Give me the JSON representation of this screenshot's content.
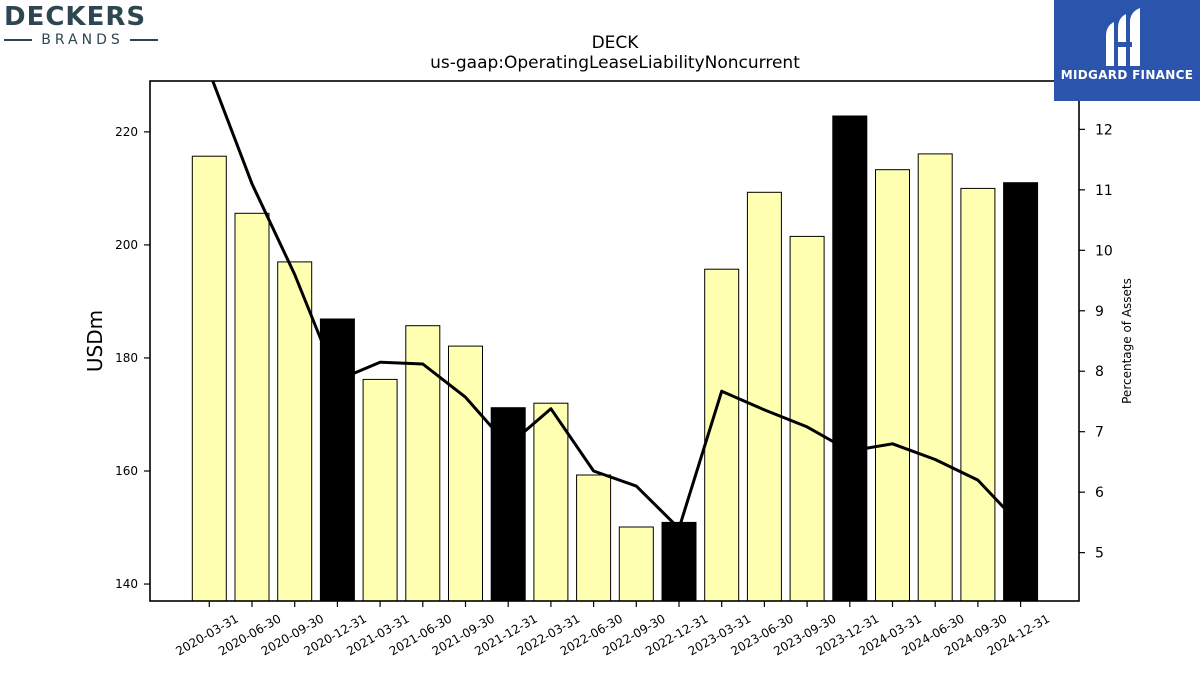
{
  "brand_left": {
    "name": "DECKERS",
    "sub": "BRANDS",
    "color": "#2e4650"
  },
  "brand_right": {
    "name": "MIDGARD FINANCE",
    "bg": "#2b55ad"
  },
  "chart_data": {
    "type": "bar",
    "title": "DECK",
    "subtitle": "us-gaap:OperatingLeaseLiabilityNoncurrent",
    "ylabel": "USDm",
    "y2label": "Percentage of Assets",
    "ylim": [
      137,
      229
    ],
    "y2lim": [
      4.2,
      12.8
    ],
    "yticks": [
      140,
      160,
      180,
      200,
      220
    ],
    "y2ticks": [
      5,
      6,
      7,
      8,
      9,
      10,
      11,
      12
    ],
    "categories": [
      "2020-03-31",
      "2020-06-30",
      "2020-09-30",
      "2020-12-31",
      "2021-03-31",
      "2021-06-30",
      "2021-09-30",
      "2021-12-31",
      "2022-03-31",
      "2022-06-30",
      "2022-09-30",
      "2022-12-31",
      "2023-03-31",
      "2023-06-30",
      "2023-09-30",
      "2023-12-31",
      "2024-03-31",
      "2024-06-30",
      "2024-09-30",
      "2024-12-31"
    ],
    "series": [
      {
        "kind": "bar",
        "axis": "left",
        "values": [
          215.7,
          205.6,
          197.0,
          186.9,
          176.2,
          185.7,
          182.1,
          171.2,
          172.0,
          159.3,
          150.1,
          150.9,
          195.7,
          209.3,
          201.5,
          222.8,
          213.3,
          216.1,
          210.0,
          211.0
        ],
        "highlight": [
          3,
          7,
          11,
          15,
          19
        ],
        "color": "#ffffb2",
        "highlight_color": "#000000"
      },
      {
        "kind": "line",
        "axis": "right",
        "values": [
          12.95,
          11.1,
          9.6,
          7.85,
          8.15,
          8.12,
          7.57,
          6.77,
          7.38,
          6.35,
          6.1,
          5.4,
          7.67,
          7.36,
          7.08,
          6.68,
          6.8,
          6.54,
          6.2,
          5.45
        ],
        "color": "#000000"
      }
    ]
  }
}
